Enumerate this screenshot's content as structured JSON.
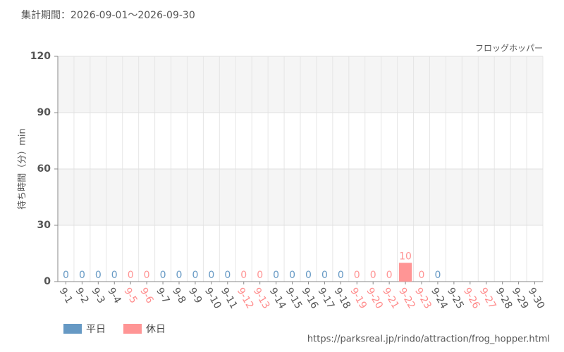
{
  "chart_data": {
    "type": "bar",
    "title": "集計期間：2026-09-01～2026-09-30",
    "subtitle": "フロッグホッパー",
    "y_label": "待ち時間（分）min",
    "source": "https://parksreal.jp/rindo/attraction/frog_hopper.html",
    "categories": [
      "9-1",
      "9-2",
      "9-3",
      "9-4",
      "9-5",
      "9-6",
      "9-7",
      "9-8",
      "9-9",
      "9-10",
      "9-11",
      "9-12",
      "9-13",
      "9-14",
      "9-15",
      "9-16",
      "9-17",
      "9-18",
      "9-19",
      "9-20",
      "9-21",
      "9-22",
      "9-23",
      "9-24",
      "9-25",
      "9-26",
      "9-27",
      "9-28",
      "9-29",
      "9-30"
    ],
    "category_colors": [
      "#555",
      "#555",
      "#555",
      "#555",
      "#ff8a8a",
      "#ff8a8a",
      "#555",
      "#555",
      "#555",
      "#555",
      "#555",
      "#ff8a8a",
      "#ff8a8a",
      "#555",
      "#555",
      "#555",
      "#555",
      "#555",
      "#ff8a8a",
      "#ff8a8a",
      "#ff8a8a",
      "#ff8a8a",
      "#ff8a8a",
      "#555",
      "#555",
      "#ff8a8a",
      "#ff8a8a",
      "#555",
      "#555",
      "#555"
    ],
    "series": [
      {
        "name": "平日",
        "color": "#6699c4",
        "values": [
          0,
          0,
          0,
          0,
          null,
          null,
          0,
          0,
          0,
          0,
          0,
          null,
          null,
          0,
          0,
          0,
          0,
          0,
          null,
          null,
          null,
          null,
          null,
          0,
          null,
          null,
          null,
          null,
          null,
          null
        ]
      },
      {
        "name": "休日",
        "color": "#ff9595",
        "values": [
          null,
          null,
          null,
          null,
          0,
          0,
          null,
          null,
          null,
          null,
          null,
          0,
          0,
          null,
          null,
          null,
          null,
          null,
          0,
          0,
          0,
          10,
          0,
          null,
          null,
          null,
          null,
          null,
          null,
          null
        ]
      }
    ],
    "ylim": [
      0,
      120
    ],
    "yticks": [
      0,
      30,
      60,
      90,
      120
    ],
    "grid": true
  }
}
